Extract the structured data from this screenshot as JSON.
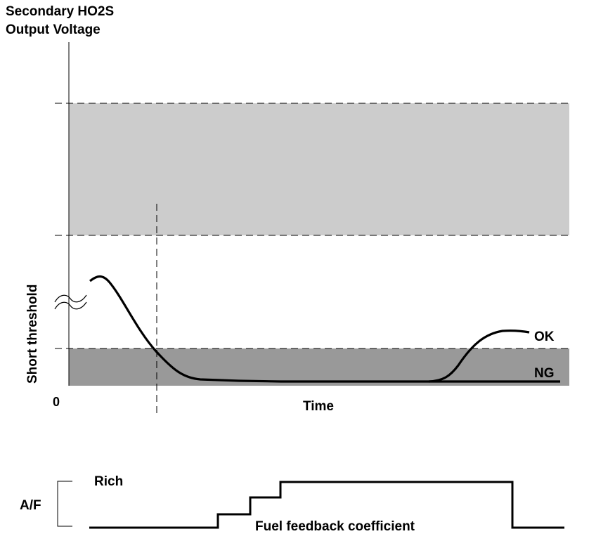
{
  "diagram": {
    "y_axis_label_line1": "Secondary HO2S",
    "y_axis_label_line2": "Output Voltage",
    "short_threshold_label": "Short threshold",
    "origin_label": "0",
    "x_axis_label": "Time",
    "ok_label": "OK",
    "ng_label": "NG",
    "af_label": "A/F",
    "rich_label": "Rich",
    "fuel_feedback_label": "Fuel feedback coefficient"
  },
  "colors": {
    "upper_band": "#cccccc",
    "lower_band": "#999999",
    "line": "#000000"
  }
}
